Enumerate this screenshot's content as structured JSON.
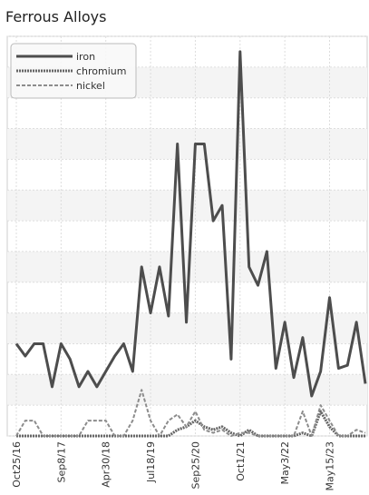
{
  "chart_data": {
    "type": "line",
    "title": "Ferrous Alloys",
    "categories": [
      "Oct25/16",
      null,
      null,
      null,
      null,
      "Sep8/17",
      null,
      null,
      null,
      null,
      "Apr30/18",
      null,
      null,
      null,
      null,
      "Jul18/19",
      null,
      null,
      null,
      null,
      "Sep25/20",
      null,
      null,
      null,
      null,
      "Oct1/21",
      null,
      null,
      null,
      null,
      "May3/22",
      null,
      null,
      null,
      null,
      "May15/23",
      null,
      null,
      null,
      null
    ],
    "series": [
      {
        "name": "iron",
        "color": "#4d4d4d",
        "values": [
          3.0,
          2.6,
          3.0,
          3.0,
          1.6,
          3.0,
          2.5,
          1.6,
          2.1,
          1.6,
          2.1,
          2.6,
          3.0,
          2.1,
          5.5,
          4.0,
          5.5,
          3.9,
          9.5,
          3.7,
          9.5,
          9.5,
          7.0,
          7.5,
          2.5,
          12.5,
          5.5,
          4.9,
          6.0,
          2.2,
          3.7,
          1.9,
          3.2,
          1.3,
          2.1,
          4.5,
          2.2,
          2.3,
          3.7,
          1.7
        ]
      },
      {
        "name": "chromium",
        "color": "#666666",
        "values": [
          0,
          0,
          0,
          0,
          0,
          0,
          0,
          0,
          0,
          0,
          0,
          0,
          0,
          0,
          0,
          0,
          0,
          0,
          0.2,
          0.3,
          0.5,
          0.3,
          0.2,
          0.3,
          0.1,
          0,
          0.2,
          0,
          0,
          0,
          0,
          0,
          0.1,
          0,
          0.8,
          0.3,
          0,
          0,
          0,
          0
        ]
      },
      {
        "name": "nickel",
        "color": "#8c8c8c",
        "values": [
          0,
          0.5,
          0.5,
          0,
          0,
          0,
          0,
          0,
          0.5,
          0.5,
          0.5,
          0,
          0,
          0.5,
          1.5,
          0.5,
          0,
          0.5,
          0.7,
          0.3,
          0.8,
          0.2,
          0.1,
          0.2,
          0,
          0.1,
          0.1,
          0,
          0,
          0,
          0,
          0,
          0.8,
          0,
          1.0,
          0.5,
          0,
          0,
          0.2,
          0.1
        ]
      }
    ],
    "ylim": [
      0,
      13
    ],
    "yticks": [
      0,
      1,
      2,
      3,
      4,
      5,
      6,
      7,
      8,
      9,
      10,
      11,
      12,
      13
    ],
    "grid": true
  }
}
